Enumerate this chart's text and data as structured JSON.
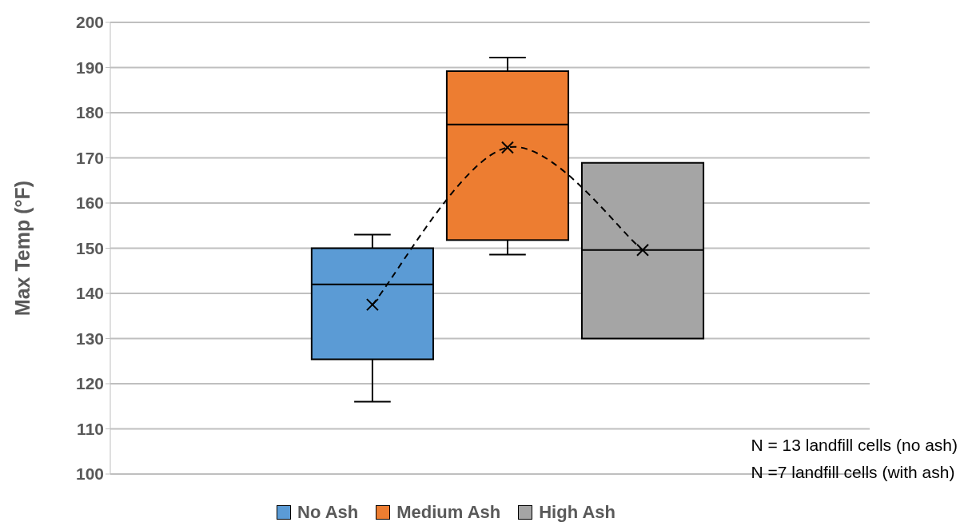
{
  "chart_data": {
    "type": "box",
    "ylabel": "Max Temp (°F)",
    "categories": [
      null
    ],
    "ylim": [
      100,
      200
    ],
    "yticks": [
      100,
      110,
      120,
      130,
      140,
      150,
      160,
      170,
      180,
      190,
      200
    ],
    "grid": "y",
    "legend": "bottom",
    "series": [
      {
        "name": "No Ash",
        "color": "#5b9bd5",
        "boxes": [
          {
            "low": 116,
            "q1": 125.4,
            "median": 142,
            "q3": 150,
            "high": 153,
            "mean": 137.5
          }
        ]
      },
      {
        "name": "Medium Ash",
        "color": "#ed7d31",
        "boxes": [
          {
            "low": 148.6,
            "q1": 151.8,
            "median": 177.4,
            "q3": 189.2,
            "high": 192.2,
            "mean": 172.3
          }
        ]
      },
      {
        "name": "High Ash",
        "color": "#a5a5a5",
        "boxes": [
          {
            "low": 130,
            "q1": 130,
            "median": 149.6,
            "q3": 168.9,
            "high": 168.9,
            "mean": 149.6
          }
        ]
      }
    ],
    "annotations": [
      "N = 13 landfill cells (no ash)",
      "N =7 landfill cells (with ash)"
    ]
  }
}
